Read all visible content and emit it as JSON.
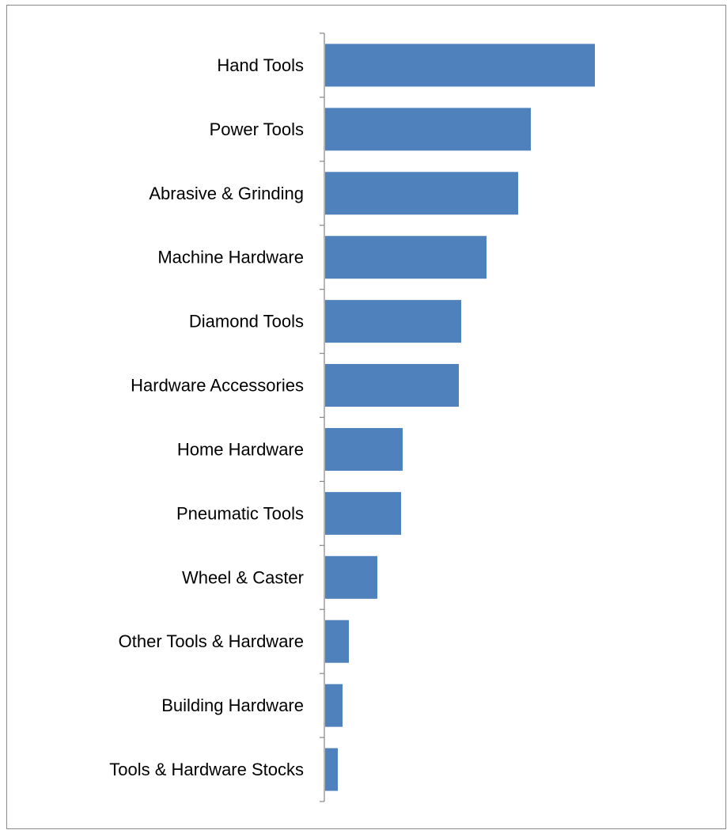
{
  "chart_data": {
    "type": "bar",
    "orientation": "horizontal",
    "categories": [
      "Hand Tools",
      "Power Tools",
      "Abrasive & Grinding",
      "Machine Hardware",
      "Diamond Tools",
      "Hardware Accessories",
      "Home Hardware",
      "Pneumatic Tools",
      "Wheel & Caster",
      "Other Tools & Hardware",
      "Building Hardware",
      "Tools & Hardware Stocks"
    ],
    "values": [
      341,
      260,
      244,
      204,
      172,
      169,
      98,
      96,
      66,
      30,
      22,
      16
    ],
    "title": "",
    "xlabel": "",
    "ylabel": "",
    "xlim": [
      0,
      500
    ],
    "grid": false,
    "legend": "none",
    "bar_color": "#4F81BD",
    "axis_color": "#868686"
  }
}
